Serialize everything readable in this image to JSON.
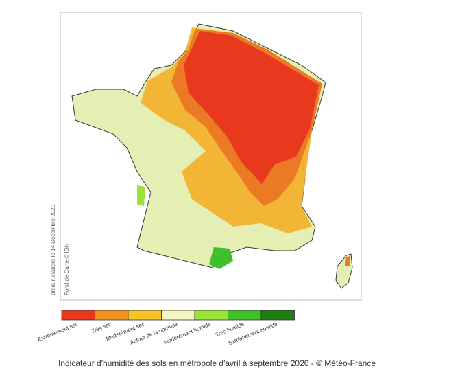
{
  "map": {
    "side_texts": [
      "produit élaboré le 14 Décembre 2020",
      "Fond de Carte © IGN"
    ],
    "legend": [
      {
        "label": "Extrêmement sec",
        "color": "#e8391e"
      },
      {
        "label": "Très sec",
        "color": "#f0921e"
      },
      {
        "label": "Modérément sec",
        "color": "#f5c425"
      },
      {
        "label": "Autour de la normale",
        "color": "#f3f6c2"
      },
      {
        "label": "Modérément humide",
        "color": "#9be23a"
      },
      {
        "label": "Très humide",
        "color": "#3fbf2a"
      },
      {
        "label": "Extrêmement humide",
        "color": "#1f7d14"
      }
    ]
  },
  "caption": "Indicateur d'humidité des sols en métropole d'avril à septembre 2020 - © Météo-France"
}
